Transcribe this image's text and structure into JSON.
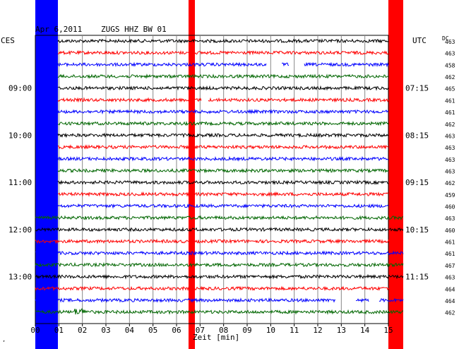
{
  "header": {
    "date": "Apr 6,2011",
    "station": "ZUGS HHZ BW 01",
    "left_zone": "CES",
    "right_zone": "UTC",
    "dc_label": "DC"
  },
  "left_time_labels": [
    "09:00",
    "10:00",
    "11:00",
    "12:00",
    "13:00"
  ],
  "right_time_labels": [
    "07:15",
    "08:15",
    "09:15",
    "10:15",
    "11:15"
  ],
  "x_ticks": [
    "00",
    "01",
    "02",
    "03",
    "04",
    "05",
    "06",
    "07",
    "08",
    "09",
    "10",
    "11",
    "12",
    "13",
    "14",
    "15"
  ],
  "x_axis_label": "Zeit [min]",
  "corner_mark": "ʼ",
  "dc_values": [
    "463",
    "463",
    "458",
    "462",
    "465",
    "461",
    "461",
    "462",
    "463",
    "463",
    "463",
    "463",
    "462",
    "459",
    "460",
    "463",
    "460",
    "461",
    "461",
    "467",
    "463",
    "464",
    "464",
    "462"
  ],
  "trace_colors": [
    "#000000",
    "#ff0000",
    "#0000ff",
    "#006600"
  ],
  "band_colors": {
    "blue": "#0000ff",
    "red": "#ff0000"
  }
}
